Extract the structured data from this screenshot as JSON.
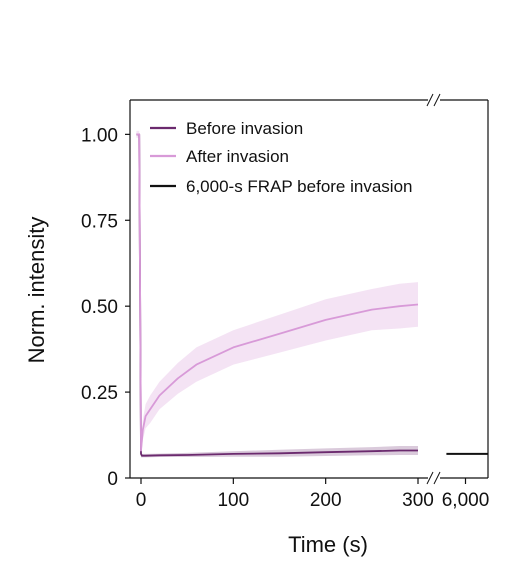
{
  "chart_data": {
    "type": "line",
    "xlabel": "Time (s)",
    "ylabel": "Norm. intensity",
    "x_axis": {
      "segments": [
        {
          "range": [
            -8,
            305
          ],
          "ticks": [
            0,
            100,
            200,
            300
          ]
        },
        {
          "range": [
            5800,
            6200
          ],
          "ticks": [
            6000
          ]
        }
      ],
      "tick_labels": [
        "0",
        "100",
        "200",
        "300",
        "6,000"
      ],
      "axis_break": true
    },
    "ylim": [
      0,
      1.1
    ],
    "y_ticks": [
      0,
      0.25,
      0.5,
      0.75,
      1.0
    ],
    "y_tick_labels": [
      "0",
      "0.25",
      "0.50",
      "0.75",
      "1.00"
    ],
    "legend_position": "top-right",
    "series": [
      {
        "name": "Before invasion",
        "color": "#6b2a6e",
        "x": [
          -5,
          -2,
          0,
          1,
          5,
          20,
          50,
          100,
          150,
          200,
          250,
          280,
          300
        ],
        "y": [
          1.0,
          1.0,
          0.07,
          0.065,
          0.065,
          0.066,
          0.067,
          0.07,
          0.072,
          0.075,
          0.078,
          0.08,
          0.08
        ],
        "band": [
          0.0,
          0.0,
          0.01,
          0.005,
          0.005,
          0.005,
          0.006,
          0.008,
          0.01,
          0.011,
          0.012,
          0.013,
          0.013
        ]
      },
      {
        "name": "After invasion",
        "color": "#d89ad8",
        "x": [
          -5,
          -2,
          0,
          2,
          5,
          10,
          20,
          40,
          60,
          100,
          150,
          200,
          250,
          280,
          300
        ],
        "y": [
          1.0,
          1.0,
          0.08,
          0.14,
          0.18,
          0.2,
          0.24,
          0.29,
          0.33,
          0.38,
          0.42,
          0.46,
          0.49,
          0.5,
          0.505
        ],
        "band": [
          0.01,
          0.01,
          0.02,
          0.03,
          0.035,
          0.04,
          0.04,
          0.045,
          0.05,
          0.05,
          0.055,
          0.06,
          0.06,
          0.065,
          0.065
        ]
      },
      {
        "name": "6,000-s FRAP before invasion",
        "color": "#111111",
        "x": [
          5830,
          6200
        ],
        "y": [
          0.07,
          0.07
        ]
      }
    ]
  }
}
